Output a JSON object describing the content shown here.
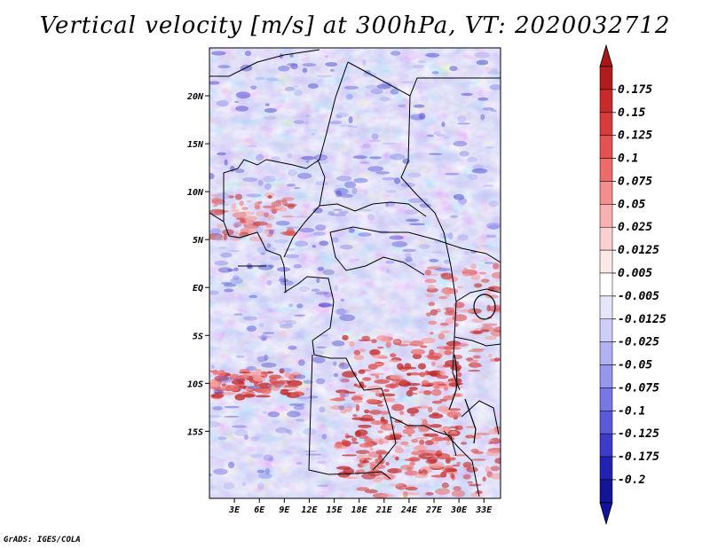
{
  "title": "Vertical velocity [m/s] at 300hPa, VT: 2020032712",
  "credit": "GrADS: IGES/COLA",
  "map": {
    "lat_range": [
      -22,
      25
    ],
    "lon_range": [
      0,
      35
    ],
    "lat_ticks": [
      {
        "label": "20N",
        "value": 20
      },
      {
        "label": "15N",
        "value": 15
      },
      {
        "label": "10N",
        "value": 10
      },
      {
        "label": "5N",
        "value": 5
      },
      {
        "label": "EQ",
        "value": 0
      },
      {
        "label": "5S",
        "value": -5
      },
      {
        "label": "10S",
        "value": -10
      },
      {
        "label": "15S",
        "value": -15
      }
    ],
    "lon_ticks": [
      {
        "label": "3E",
        "value": 3
      },
      {
        "label": "6E",
        "value": 6
      },
      {
        "label": "9E",
        "value": 9
      },
      {
        "label": "12E",
        "value": 12
      },
      {
        "label": "15E",
        "value": 15
      },
      {
        "label": "18E",
        "value": 18
      },
      {
        "label": "21E",
        "value": 21
      },
      {
        "label": "24E",
        "value": 24
      },
      {
        "label": "27E",
        "value": 27
      },
      {
        "label": "30E",
        "value": 30
      },
      {
        "label": "33E",
        "value": 33
      }
    ]
  },
  "colorbar": {
    "labels": [
      "0.175",
      "0.15",
      "0.125",
      "0.1",
      "0.075",
      "0.05",
      "0.025",
      "0.0125",
      "0.005",
      "-0.005",
      "-0.0125",
      "-0.025",
      "-0.05",
      "-0.075",
      "-0.1",
      "-0.125",
      "-0.175",
      "-0.2"
    ],
    "colors": [
      "#b01c1c",
      "#c62a2a",
      "#d63c3c",
      "#e25252",
      "#ec6c6c",
      "#f38e8e",
      "#f8b0b0",
      "#fbd0d0",
      "#fde8e8",
      "#ffffff",
      "#e6e6fb",
      "#cdcdf7",
      "#b2b2f2",
      "#9696ec",
      "#7878e4",
      "#5a5ad9",
      "#3c3cc8",
      "#2222b0",
      "#141496"
    ],
    "low_color": "#12129a",
    "high_color": "#aa1616"
  }
}
